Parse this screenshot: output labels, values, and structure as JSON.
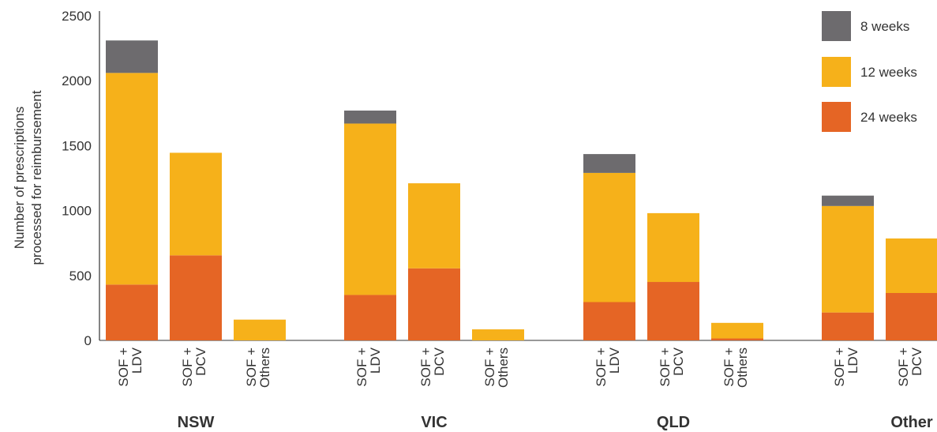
{
  "chart_data": {
    "type": "bar",
    "stacked": true,
    "ylabel": [
      "Number of prescriptions",
      "processed for reimbursement"
    ],
    "ylim": [
      0,
      2500
    ],
    "yticks": [
      "0",
      "500",
      "1000",
      "1500",
      "2000",
      "2500"
    ],
    "grid": false,
    "legend_position": "top-right",
    "groups": [
      {
        "name": "NSW",
        "categories": [
          {
            "label": [
              "SOF +",
              "LDV"
            ],
            "values": [
              430,
              1630,
              250
            ]
          },
          {
            "label": [
              "SOF +",
              "DCV"
            ],
            "values": [
              655,
              790,
              0
            ]
          },
          {
            "label": [
              "SOF +",
              "Others"
            ],
            "values": [
              0,
              160,
              0
            ]
          }
        ]
      },
      {
        "name": "VIC",
        "categories": [
          {
            "label": [
              "SOF +",
              "LDV"
            ],
            "values": [
              350,
              1320,
              100
            ]
          },
          {
            "label": [
              "SOF +",
              "DCV"
            ],
            "values": [
              555,
              655,
              0
            ]
          },
          {
            "label": [
              "SOF +",
              "Others"
            ],
            "values": [
              0,
              85,
              0
            ]
          }
        ]
      },
      {
        "name": "QLD",
        "categories": [
          {
            "label": [
              "SOF +",
              "LDV"
            ],
            "values": [
              295,
              995,
              145
            ]
          },
          {
            "label": [
              "SOF +",
              "DCV"
            ],
            "values": [
              450,
              530,
              0
            ]
          },
          {
            "label": [
              "SOF +",
              "Others"
            ],
            "values": [
              15,
              120,
              0
            ]
          }
        ]
      },
      {
        "name": "Other",
        "categories": [
          {
            "label": [
              "SOF +",
              "LDV"
            ],
            "values": [
              215,
              820,
              80
            ]
          },
          {
            "label": [
              "SOF +",
              "DCV"
            ],
            "values": [
              365,
              420,
              0
            ]
          }
        ]
      }
    ],
    "series": [
      {
        "name": "24 weeks",
        "color": "#e56525"
      },
      {
        "name": "12 weeks",
        "color": "#f6b11a"
      },
      {
        "name": "8 weeks",
        "color": "#6d6b6e"
      }
    ],
    "legend_order": [
      "8 weeks",
      "12 weeks",
      "24 weeks"
    ]
  }
}
